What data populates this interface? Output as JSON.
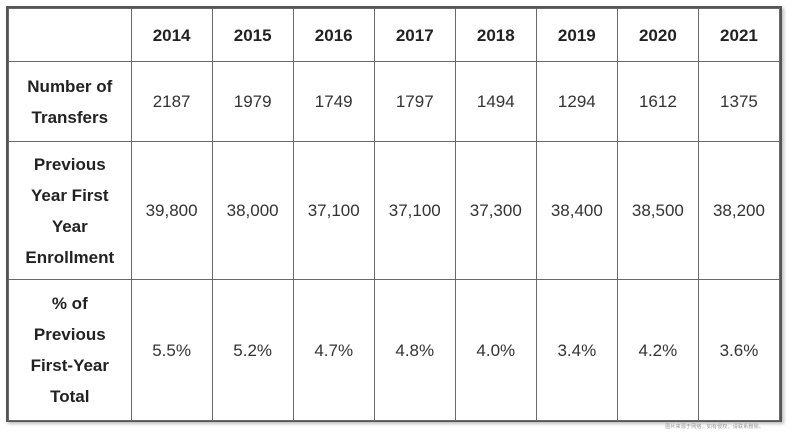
{
  "table": {
    "corner_label": "",
    "years": [
      "2014",
      "2015",
      "2016",
      "2017",
      "2018",
      "2019",
      "2020",
      "2021"
    ],
    "rows": [
      {
        "label": "Number of\nTransfers",
        "values": [
          "2187",
          "1979",
          "1749",
          "1797",
          "1494",
          "1294",
          "1612",
          "1375"
        ]
      },
      {
        "label": "Previous\nYear First\nYear\nEnrollment",
        "values": [
          "39,800",
          "38,000",
          "37,100",
          "37,100",
          "37,300",
          "38,400",
          "38,500",
          "38,200"
        ]
      },
      {
        "label": "%  of\nPrevious\nFirst-Year\nTotal",
        "values": [
          "5.5%",
          "5.2%",
          "4.7%",
          "4.8%",
          "4.0%",
          "3.4%",
          "4.2%",
          "3.6%"
        ]
      }
    ]
  },
  "watermark": "图片来源于网络，如有侵权，请联系删除。"
}
